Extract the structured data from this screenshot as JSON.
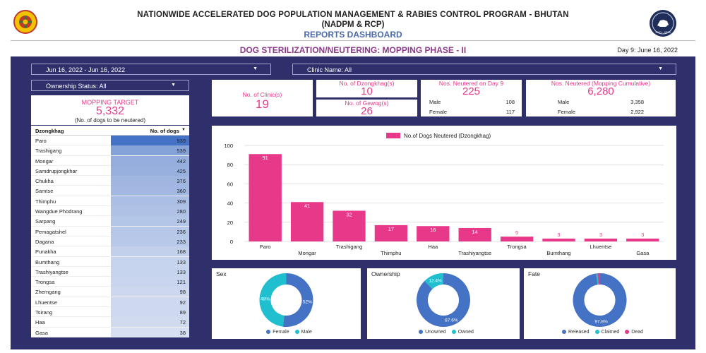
{
  "header": {
    "title_line1": "NATIONWIDE ACCELERATED DOG POPULATION MANAGEMENT & RABIES CONTROL PROGRAM - BHUTAN",
    "title_line2": "(NADPM & RCP)",
    "title_line3": "REPORTS DASHBOARD",
    "phase": "DOG STERILIZATION/NEUTERING: MOPPING PHASE - II",
    "day_info": "Day 9: June 16, 2022",
    "left_logo_icon": "national-emblem-icon",
    "right_logo_icon": "program-seal-icon",
    "right_logo_year": "2021 - 2023"
  },
  "filters": {
    "date_range": "Jun 16, 2022 - Jun 16, 2022",
    "clinic": "Clinic Name: All",
    "ownership": "Ownership Status: All"
  },
  "mopping": {
    "label": "MOPPING TARGET",
    "value": "5,332",
    "sub": "(No. of dogs to be neutered)"
  },
  "table": {
    "col1": "Dzongkhag",
    "col2": "No. of dogs",
    "max": 939,
    "rows": [
      {
        "name": "Paro",
        "value": 939
      },
      {
        "name": "Trashigang",
        "value": 539
      },
      {
        "name": "Mongar",
        "value": 442
      },
      {
        "name": "Samdrupjongkhar",
        "value": 425
      },
      {
        "name": "Chukha",
        "value": 376
      },
      {
        "name": "Samtse",
        "value": 360
      },
      {
        "name": "Thimphu",
        "value": 309
      },
      {
        "name": "Wangdue Phodrang",
        "value": 280
      },
      {
        "name": "Sarpang",
        "value": 249
      },
      {
        "name": "Pemagatshel",
        "value": 236
      },
      {
        "name": "Dagana",
        "value": 233
      },
      {
        "name": "Punakha",
        "value": 168
      },
      {
        "name": "Bumthang",
        "value": 133
      },
      {
        "name": "Trashiyangtse",
        "value": 133
      },
      {
        "name": "Trongsa",
        "value": 121
      },
      {
        "name": "Zhemgang",
        "value": 98
      },
      {
        "name": "Lhuentse",
        "value": 92
      },
      {
        "name": "Tsirang",
        "value": 89
      },
      {
        "name": "Haa",
        "value": 72
      },
      {
        "name": "Gasa",
        "value": 38
      }
    ]
  },
  "kpi": {
    "clinics": {
      "label": "No. of Clinic(s)",
      "value": "19"
    },
    "dzongkhag": {
      "label": "No. of Dzongkhag(s)",
      "value": "10"
    },
    "gewog": {
      "label": "No. of Gewog(s)",
      "value": "26"
    },
    "day": {
      "label": "Nos. Neutered on Day 9",
      "value": "225",
      "male_label": "Male",
      "male": "108",
      "female_label": "Female",
      "female": "117"
    },
    "cumulative": {
      "label": "Nos. Neutered (Mopping Cumulative)",
      "value": "6,280",
      "male_label": "Male",
      "male": "3,358",
      "female_label": "Female",
      "female": "2,922"
    }
  },
  "chart_data": {
    "type": "bar",
    "legend": "No.of Dogs Neutered (Dzongkhag)",
    "legend_position": "top-center",
    "color": "#e8388a",
    "categories": [
      "Paro",
      "Mongar",
      "Trashigang",
      "Thimphu",
      "Haa",
      "Trashiyangtse",
      "Trongsa",
      "Bumthang",
      "Lhuentse",
      "Gasa"
    ],
    "values": [
      91,
      41,
      32,
      17,
      16,
      14,
      5,
      3,
      3,
      3
    ],
    "ylim": [
      0,
      100
    ],
    "yticks": [
      0,
      20,
      40,
      60,
      80,
      100
    ],
    "grid": true
  },
  "donuts": [
    {
      "title": "Sex",
      "slices": [
        {
          "label": "Female",
          "value": 52,
          "text": "52%",
          "color": "#4472c4"
        },
        {
          "label": "Male",
          "value": 48,
          "text": "48%",
          "color": "#1fbfd0"
        }
      ]
    },
    {
      "title": "Ownership",
      "slices": [
        {
          "label": "Unowned",
          "value": 87.6,
          "text": "87.6%",
          "color": "#4472c4"
        },
        {
          "label": "Owned",
          "value": 12.4,
          "text": "12.4%",
          "color": "#1fbfd0"
        }
      ]
    },
    {
      "title": "Fate",
      "slices": [
        {
          "label": "Released",
          "value": 97.8,
          "text": "97.8%",
          "color": "#4472c4"
        },
        {
          "label": "Claimed",
          "value": 0.9,
          "text": "",
          "color": "#1fbfd0"
        },
        {
          "label": "Dead",
          "value": 1.3,
          "text": "",
          "color": "#e8388a"
        }
      ]
    }
  ],
  "colors": {
    "navy": "#2e2f6b",
    "pink": "#e8388a",
    "blue": "#4472c4",
    "teal": "#1fbfd0"
  }
}
